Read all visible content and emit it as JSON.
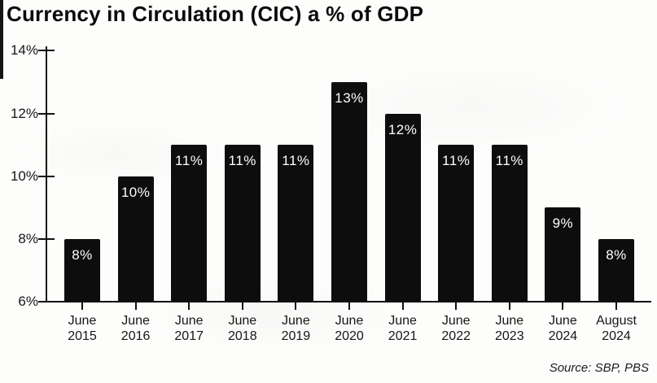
{
  "title": "Currency in Circulation (CIC) a % of GDP",
  "source_note": "Source: SBP, PBS",
  "chart_data": {
    "type": "bar",
    "title": "Currency in Circulation (CIC) a % of GDP",
    "categories": [
      "June 2015",
      "June 2016",
      "June 2017",
      "June 2018",
      "June 2019",
      "June 2020",
      "June 2021",
      "June 2022",
      "June 2023",
      "June 2024",
      "August 2024"
    ],
    "category_lines": [
      [
        "June",
        "2015"
      ],
      [
        "June",
        "2016"
      ],
      [
        "June",
        "2017"
      ],
      [
        "June",
        "2018"
      ],
      [
        "June",
        "2019"
      ],
      [
        "June",
        "2020"
      ],
      [
        "June",
        "2021"
      ],
      [
        "June",
        "2022"
      ],
      [
        "June",
        "2023"
      ],
      [
        "June",
        "2024"
      ],
      [
        "August",
        "2024"
      ]
    ],
    "values": [
      8,
      10,
      11,
      11,
      11,
      13,
      12,
      11,
      11,
      9,
      8
    ],
    "bar_labels": [
      "8%",
      "10%",
      "11%",
      "11%",
      "11%",
      "13%",
      "12%",
      "11%",
      "11%",
      "9%",
      "8%"
    ],
    "xlabel": "",
    "ylabel": "",
    "ylim": [
      6,
      14
    ],
    "yticks": [
      6,
      8,
      10,
      12,
      14
    ],
    "ytick_labels": [
      "6%",
      "8%",
      "10%",
      "12%",
      "14%"
    ],
    "bar_color": "#0d0d0d",
    "bar_label_color": "#ffffff",
    "axis_color": "#111111",
    "text_color": "#161616",
    "grid": false,
    "legend": false,
    "source": "Source: SBP, PBS"
  }
}
